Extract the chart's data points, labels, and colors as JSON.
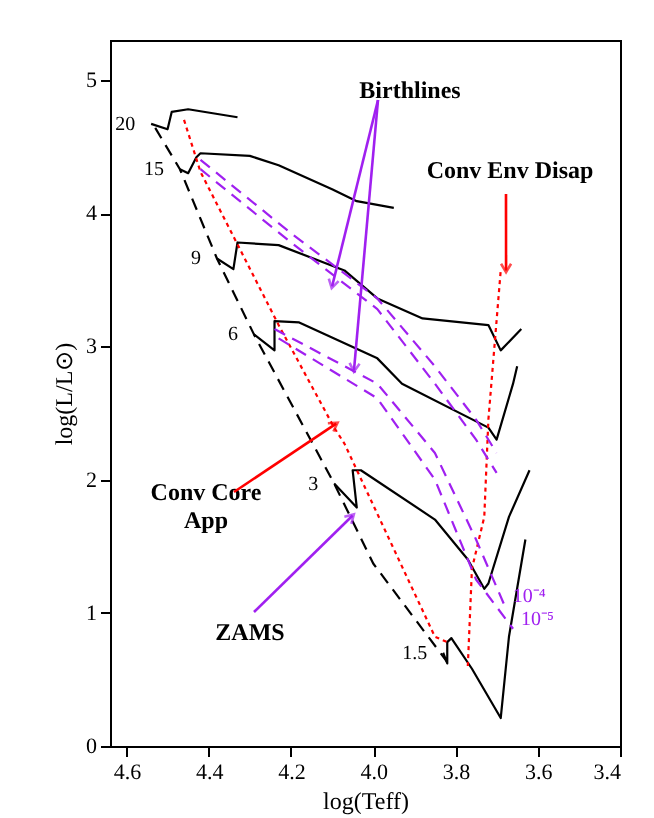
{
  "chart_data": {
    "type": "line",
    "xlabel": "log(Teff)",
    "ylabel": "log(L/L⊙)",
    "xlim": [
      4.64,
      3.4
    ],
    "ylim": [
      0,
      5.3
    ],
    "xticks": [
      4.6,
      4.4,
      4.2,
      {
        "value": 4.0,
        "label": "4.0"
      },
      3.8,
      3.6,
      3.4
    ],
    "yticks": [
      0,
      1,
      2,
      3,
      4,
      5
    ],
    "grid": false,
    "legend": false,
    "marker": "none",
    "annotations": [
      {
        "text": "Birthlines",
        "x": 4.1,
        "y": 3.45
      },
      {
        "text": "Conv Env Disap",
        "x": 3.677,
        "y": 3.57
      },
      {
        "text": "Conv Core\nApp",
        "x": 4.09,
        "y": 2.42
      },
      {
        "text": "ZAMS",
        "x": 4.05,
        "y": 1.73
      }
    ],
    "series": [
      {
        "name": "20",
        "color": "#000000",
        "line_style": "solid",
        "x": [
          4.54,
          4.5,
          4.49,
          4.45,
          4.33
        ],
        "values": [
          4.67,
          4.63,
          4.76,
          4.78,
          4.72
        ]
      },
      {
        "name": "15",
        "color": "#000000",
        "line_style": "solid",
        "x": [
          4.47,
          4.45,
          4.43,
          4.42,
          4.3,
          4.23,
          4.1,
          4.04,
          3.95
        ],
        "values": [
          4.33,
          4.3,
          4.42,
          4.45,
          4.43,
          4.36,
          4.18,
          4.09,
          4.04
        ]
      },
      {
        "name": "9",
        "color": "#000000",
        "line_style": "solid",
        "x": [
          4.38,
          4.34,
          4.33,
          4.23,
          4.07,
          3.99,
          3.88,
          3.72,
          3.69,
          3.64
        ],
        "values": [
          3.66,
          3.58,
          3.78,
          3.76,
          3.57,
          3.36,
          3.21,
          3.16,
          2.97,
          3.13
        ]
      },
      {
        "name": "6",
        "color": "#000000",
        "line_style": "solid",
        "x": [
          4.29,
          4.24,
          4.24,
          4.18,
          3.99,
          3.93,
          3.72,
          3.7,
          3.66,
          3.65
        ],
        "values": [
          3.09,
          2.97,
          3.19,
          3.18,
          2.91,
          2.72,
          2.39,
          2.3,
          2.72,
          2.85
        ]
      },
      {
        "name": "3",
        "color": "#000000",
        "line_style": "solid",
        "x": [
          4.095,
          4.04,
          4.05,
          4.03,
          3.85,
          3.77,
          3.73,
          3.72,
          3.67,
          3.62
        ],
        "values": [
          1.97,
          1.79,
          2.07,
          2.07,
          1.7,
          1.4,
          1.18,
          1.22,
          1.72,
          2.07
        ]
      },
      {
        "name": "1.5",
        "color": "#000000",
        "line_style": "solid",
        "x": [
          3.83,
          3.82,
          3.82,
          3.81,
          3.76,
          3.69,
          3.67,
          3.63
        ],
        "values": [
          0.7,
          0.62,
          0.78,
          0.81,
          0.58,
          0.21,
          0.82,
          1.55
        ]
      },
      {
        "color": "#000000",
        "line_style": "dashed",
        "x": [
          4.53,
          4.47,
          4.38,
          4.29,
          4.095,
          4.0,
          3.82
        ],
        "values": [
          4.64,
          4.33,
          3.66,
          3.09,
          1.97,
          1.37,
          0.63
        ]
      },
      {
        "color": "#ff0000",
        "line_style": "dotted",
        "x": [
          4.46,
          4.42,
          4.23,
          4.095,
          4.07,
          3.85,
          3.82
        ],
        "values": [
          4.7,
          4.31,
          3.16,
          2.39,
          2.27,
          0.82,
          0.78
        ]
      },
      {
        "color": "#ff0000",
        "line_style": "dotted",
        "x": [
          3.77,
          3.76,
          3.73,
          3.72,
          3.69
        ],
        "values": [
          0.6,
          1.33,
          1.72,
          2.45,
          3.57
        ]
      },
      {
        "name": "10⁻⁴",
        "color": "#a020f0",
        "line_style": "dashed",
        "x": [
          4.42,
          4.2,
          3.99,
          3.85,
          3.75,
          3.7,
          null,
          4.24,
          3.99,
          3.85,
          3.75,
          3.68
        ],
        "values": [
          4.4,
          3.85,
          3.36,
          2.85,
          2.45,
          2.2,
          null,
          3.13,
          2.72,
          2.2,
          1.55,
          1.05
        ]
      },
      {
        "name": "10⁻⁵",
        "color": "#a020f0",
        "line_style": "dashed",
        "x": [
          4.42,
          4.2,
          3.99,
          3.85,
          3.75,
          3.7,
          null,
          4.23,
          3.99,
          3.85,
          3.75,
          3.66
        ],
        "values": [
          4.33,
          3.78,
          3.28,
          2.72,
          2.3,
          2.05,
          null,
          3.06,
          2.61,
          2.0,
          1.25,
          0.88
        ]
      }
    ]
  }
}
